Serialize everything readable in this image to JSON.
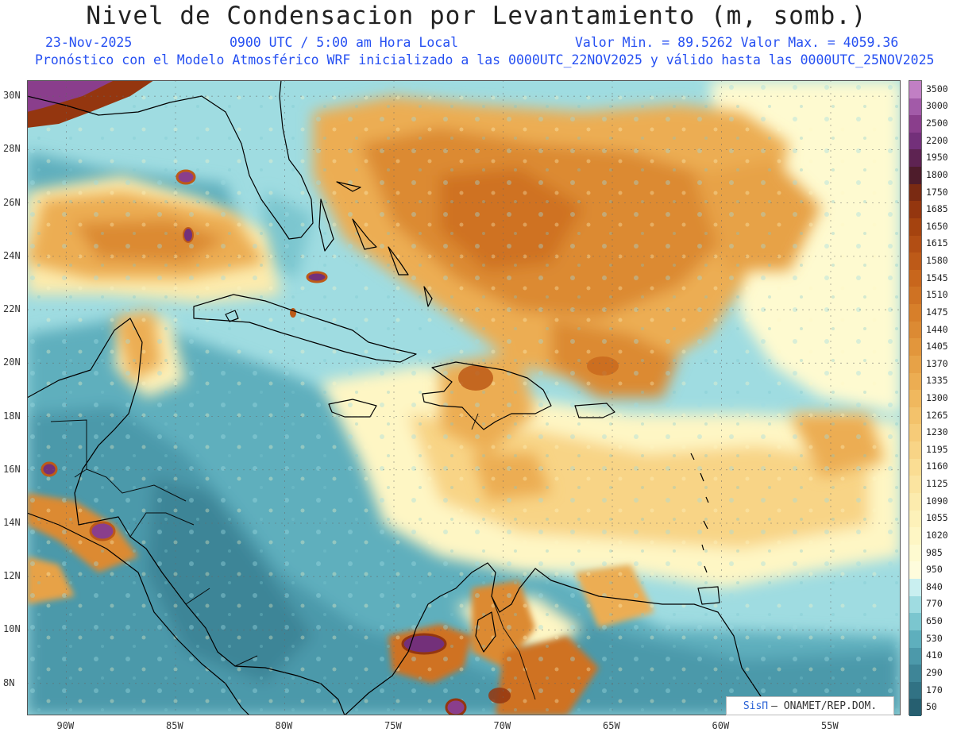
{
  "title": "Nivel de Condensacion por Levantamiento (m, somb.)",
  "date": "23-Nov-2025",
  "time": "0900 UTC / 5:00 am Hora Local",
  "minmax": "Valor Min. = 89.5262  Valor Max. = 4059.36",
  "forecast": "Pronóstico con el Modelo Atmosférico WRF inicializado a las 0000UTC_22NOV2025 y válido hasta las  0000UTC_25NOV2025",
  "credit": {
    "brand": "SisΠ",
    "rest": "– ONAMET/REP.DOM."
  },
  "lon_labels": [
    "90W",
    "85W",
    "80W",
    "75W",
    "70W",
    "65W",
    "60W",
    "55W"
  ],
  "lon_values": [
    -90,
    -85,
    -80,
    -75,
    -70,
    -65,
    -60,
    -55
  ],
  "lat_labels": [
    "30N",
    "28N",
    "26N",
    "24N",
    "22N",
    "20N",
    "18N",
    "16N",
    "14N",
    "12N",
    "10N",
    "8N"
  ],
  "lat_values": [
    30,
    28,
    26,
    24,
    22,
    20,
    18,
    16,
    14,
    12,
    10,
    8
  ],
  "extent": {
    "lon_min": -91.8,
    "lon_max": -51.8,
    "lat_min": 6.8,
    "lat_max": 30.6
  },
  "colorbar": {
    "labels": [
      "3500",
      "3000",
      "2500",
      "2200",
      "1950",
      "1800",
      "1750",
      "1685",
      "1650",
      "1615",
      "1580",
      "1545",
      "1510",
      "1475",
      "1440",
      "1405",
      "1370",
      "1335",
      "1300",
      "1265",
      "1230",
      "1195",
      "1160",
      "1125",
      "1090",
      "1055",
      "1020",
      "985",
      "950",
      "840",
      "770",
      "650",
      "530",
      "410",
      "290",
      "170",
      "50"
    ],
    "colors": [
      "#c17fc4",
      "#a25aa8",
      "#8a3e8c",
      "#73307a",
      "#5e2352",
      "#4e1c2b",
      "#7a2a12",
      "#94360f",
      "#a5430f",
      "#b24e14",
      "#bd5a18",
      "#c8661c",
      "#cf7223",
      "#d77f2a",
      "#dc8a33",
      "#e2963c",
      "#e7a247",
      "#ecad52",
      "#f0b85e",
      "#f3c26b",
      "#f6cb78",
      "#f8d486",
      "#fadd93",
      "#fbe4a0",
      "#fcebad",
      "#fdf1b9",
      "#fef6c4",
      "#fefad0",
      "#fefcdc",
      "#c9eff0",
      "#9fdce1",
      "#7bc6cf",
      "#5eafbd",
      "#4c99aa",
      "#3e8597",
      "#317284",
      "#265f70"
    ]
  },
  "field_colors": {
    "deep_teal": "#3e8597",
    "teal": "#5eafbd",
    "light_teal": "#9fdce1",
    "cyan": "#c9eff0",
    "pale_yellow": "#fef6c4",
    "yellow": "#f8d486",
    "light_orange": "#ecad52",
    "orange": "#dc8a33",
    "dark_orange": "#bd5a18",
    "brown": "#94360f",
    "purple": "#8a3e8c"
  }
}
